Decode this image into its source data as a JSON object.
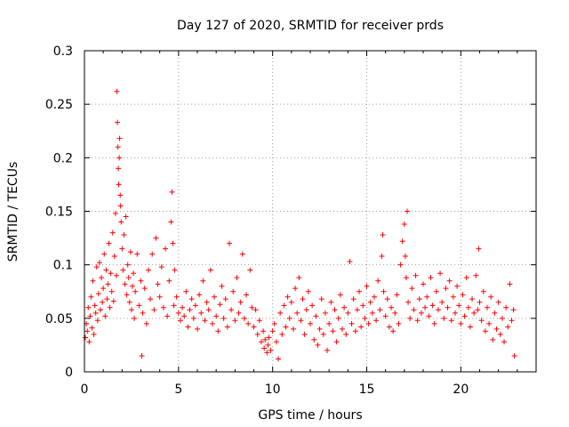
{
  "chart_data": {
    "type": "scatter",
    "title": "Day 127 of 2020, SRMTID for receiver prds",
    "xlabel": "GPS time / hours",
    "ylabel": "SRMTID / TECUs",
    "xlim": [
      0,
      24
    ],
    "ylim": [
      0,
      0.3
    ],
    "xticks": [
      0,
      5,
      10,
      15,
      20
    ],
    "xtick_labels": [
      "0",
      "5",
      "10",
      "15",
      "20"
    ],
    "yticks": [
      0,
      0.05,
      0.1,
      0.15,
      0.2,
      0.25,
      0.3
    ],
    "ytick_labels": [
      "0",
      "0.05",
      "0.1",
      "0.15",
      "0.2",
      "0.25",
      "0.3"
    ],
    "grid": true,
    "marker": "+",
    "series": [
      {
        "name": "SRMTID",
        "color": "#ff0000",
        "points": [
          [
            0.05,
            0.032
          ],
          [
            0.1,
            0.045
          ],
          [
            0.15,
            0.038
          ],
          [
            0.2,
            0.06
          ],
          [
            0.25,
            0.028
          ],
          [
            0.3,
            0.052
          ],
          [
            0.35,
            0.07
          ],
          [
            0.4,
            0.041
          ],
          [
            0.45,
            0.085
          ],
          [
            0.5,
            0.035
          ],
          [
            0.55,
            0.062
          ],
          [
            0.6,
            0.055
          ],
          [
            0.65,
            0.098
          ],
          [
            0.7,
            0.048
          ],
          [
            0.75,
            0.073
          ],
          [
            0.8,
            0.102
          ],
          [
            0.85,
            0.058
          ],
          [
            0.9,
            0.088
          ],
          [
            0.95,
            0.065
          ],
          [
            1.0,
            0.078
          ],
          [
            1.05,
            0.11
          ],
          [
            1.1,
            0.052
          ],
          [
            1.15,
            0.095
          ],
          [
            1.2,
            0.068
          ],
          [
            1.25,
            0.082
          ],
          [
            1.3,
            0.12
          ],
          [
            1.35,
            0.06
          ],
          [
            1.4,
            0.092
          ],
          [
            1.45,
            0.075
          ],
          [
            1.5,
            0.13
          ],
          [
            1.55,
            0.066
          ],
          [
            1.6,
            0.108
          ],
          [
            1.65,
            0.148
          ],
          [
            1.7,
            0.09
          ],
          [
            1.72,
            0.262
          ],
          [
            1.75,
            0.233
          ],
          [
            1.78,
            0.21
          ],
          [
            1.8,
            0.19
          ],
          [
            1.82,
            0.175
          ],
          [
            1.85,
            0.2
          ],
          [
            1.87,
            0.218
          ],
          [
            1.9,
            0.165
          ],
          [
            1.92,
            0.155
          ],
          [
            1.95,
            0.14
          ],
          [
            2.0,
            0.115
          ],
          [
            2.05,
            0.095
          ],
          [
            2.1,
            0.128
          ],
          [
            2.15,
            0.082
          ],
          [
            2.2,
            0.145
          ],
          [
            2.25,
            0.072
          ],
          [
            2.3,
            0.1
          ],
          [
            2.35,
            0.088
          ],
          [
            2.4,
            0.065
          ],
          [
            2.45,
            0.112
          ],
          [
            2.5,
            0.058
          ],
          [
            2.55,
            0.08
          ],
          [
            2.6,
            0.092
          ],
          [
            2.65,
            0.05
          ],
          [
            2.7,
            0.075
          ],
          [
            2.8,
            0.11
          ],
          [
            2.9,
            0.062
          ],
          [
            3.0,
            0.085
          ],
          [
            3.05,
            0.015
          ],
          [
            3.1,
            0.055
          ],
          [
            3.2,
            0.078
          ],
          [
            3.3,
            0.045
          ],
          [
            3.4,
            0.095
          ],
          [
            3.5,
            0.068
          ],
          [
            3.6,
            0.11
          ],
          [
            3.7,
            0.058
          ],
          [
            3.8,
            0.125
          ],
          [
            3.9,
            0.082
          ],
          [
            4.0,
            0.07
          ],
          [
            4.1,
            0.098
          ],
          [
            4.2,
            0.06
          ],
          [
            4.3,
            0.115
          ],
          [
            4.4,
            0.052
          ],
          [
            4.5,
            0.085
          ],
          [
            4.6,
            0.14
          ],
          [
            4.65,
            0.168
          ],
          [
            4.7,
            0.12
          ],
          [
            4.75,
            0.062
          ],
          [
            4.8,
            0.095
          ],
          [
            4.9,
            0.07
          ],
          [
            5.0,
            0.055
          ],
          [
            5.1,
            0.048
          ],
          [
            5.2,
            0.06
          ],
          [
            5.3,
            0.052
          ],
          [
            5.4,
            0.075
          ],
          [
            5.5,
            0.042
          ],
          [
            5.6,
            0.058
          ],
          [
            5.7,
            0.068
          ],
          [
            5.8,
            0.05
          ],
          [
            5.9,
            0.062
          ],
          [
            6.0,
            0.04
          ],
          [
            6.1,
            0.072
          ],
          [
            6.2,
            0.055
          ],
          [
            6.3,
            0.085
          ],
          [
            6.4,
            0.048
          ],
          [
            6.5,
            0.065
          ],
          [
            6.6,
            0.058
          ],
          [
            6.7,
            0.095
          ],
          [
            6.8,
            0.045
          ],
          [
            6.9,
            0.07
          ],
          [
            7.0,
            0.052
          ],
          [
            7.1,
            0.038
          ],
          [
            7.2,
            0.063
          ],
          [
            7.3,
            0.08
          ],
          [
            7.4,
            0.05
          ],
          [
            7.5,
            0.068
          ],
          [
            7.6,
            0.042
          ],
          [
            7.7,
            0.12
          ],
          [
            7.8,
            0.058
          ],
          [
            7.9,
            0.075
          ],
          [
            8.0,
            0.048
          ],
          [
            8.1,
            0.088
          ],
          [
            8.2,
            0.055
          ],
          [
            8.3,
            0.065
          ],
          [
            8.4,
            0.11
          ],
          [
            8.5,
            0.05
          ],
          [
            8.6,
            0.072
          ],
          [
            8.7,
            0.045
          ],
          [
            8.8,
            0.095
          ],
          [
            8.9,
            0.06
          ],
          [
            9.0,
            0.042
          ],
          [
            9.1,
            0.058
          ],
          [
            9.2,
            0.035
          ],
          [
            9.3,
            0.048
          ],
          [
            9.4,
            0.028
          ],
          [
            9.5,
            0.038
          ],
          [
            9.55,
            0.022
          ],
          [
            9.6,
            0.03
          ],
          [
            9.7,
            0.018
          ],
          [
            9.75,
            0.025
          ],
          [
            9.8,
            0.032
          ],
          [
            9.9,
            0.02
          ],
          [
            10.0,
            0.038
          ],
          [
            10.1,
            0.045
          ],
          [
            10.2,
            0.028
          ],
          [
            10.3,
            0.012
          ],
          [
            10.4,
            0.055
          ],
          [
            10.5,
            0.035
          ],
          [
            10.6,
            0.062
          ],
          [
            10.7,
            0.042
          ],
          [
            10.8,
            0.07
          ],
          [
            10.9,
            0.05
          ],
          [
            11.0,
            0.065
          ],
          [
            11.1,
            0.04
          ],
          [
            11.2,
            0.078
          ],
          [
            11.3,
            0.055
          ],
          [
            11.4,
            0.088
          ],
          [
            11.5,
            0.048
          ],
          [
            11.6,
            0.068
          ],
          [
            11.7,
            0.035
          ],
          [
            11.8,
            0.058
          ],
          [
            11.9,
            0.075
          ],
          [
            12.0,
            0.045
          ],
          [
            12.1,
            0.062
          ],
          [
            12.2,
            0.03
          ],
          [
            12.3,
            0.052
          ],
          [
            12.4,
            0.025
          ],
          [
            12.5,
            0.04
          ],
          [
            12.6,
            0.068
          ],
          [
            12.7,
            0.035
          ],
          [
            12.8,
            0.055
          ],
          [
            12.9,
            0.02
          ],
          [
            13.0,
            0.045
          ],
          [
            13.1,
            0.065
          ],
          [
            13.2,
            0.038
          ],
          [
            13.3,
            0.058
          ],
          [
            13.4,
            0.028
          ],
          [
            13.5,
            0.05
          ],
          [
            13.6,
            0.072
          ],
          [
            13.7,
            0.04
          ],
          [
            13.8,
            0.06
          ],
          [
            13.9,
            0.035
          ],
          [
            14.0,
            0.055
          ],
          [
            14.1,
            0.103
          ],
          [
            14.2,
            0.045
          ],
          [
            14.3,
            0.068
          ],
          [
            14.4,
            0.038
          ],
          [
            14.5,
            0.058
          ],
          [
            14.6,
            0.075
          ],
          [
            14.7,
            0.042
          ],
          [
            14.8,
            0.062
          ],
          [
            14.9,
            0.05
          ],
          [
            15.0,
            0.08
          ],
          [
            15.1,
            0.045
          ],
          [
            15.2,
            0.065
          ],
          [
            15.3,
            0.055
          ],
          [
            15.4,
            0.07
          ],
          [
            15.5,
            0.048
          ],
          [
            15.6,
            0.085
          ],
          [
            15.7,
            0.058
          ],
          [
            15.8,
            0.108
          ],
          [
            15.85,
            0.128
          ],
          [
            15.9,
            0.075
          ],
          [
            16.0,
            0.052
          ],
          [
            16.1,
            0.068
          ],
          [
            16.2,
            0.042
          ],
          [
            16.3,
            0.06
          ],
          [
            16.4,
            0.038
          ],
          [
            16.5,
            0.055
          ],
          [
            16.6,
            0.072
          ],
          [
            16.7,
            0.045
          ],
          [
            16.8,
            0.1
          ],
          [
            16.9,
            0.122
          ],
          [
            17.0,
            0.138
          ],
          [
            17.05,
            0.108
          ],
          [
            17.1,
            0.088
          ],
          [
            17.15,
            0.15
          ],
          [
            17.2,
            0.065
          ],
          [
            17.3,
            0.05
          ],
          [
            17.4,
            0.078
          ],
          [
            17.5,
            0.058
          ],
          [
            17.6,
            0.09
          ],
          [
            17.7,
            0.048
          ],
          [
            17.8,
            0.068
          ],
          [
            17.9,
            0.055
          ],
          [
            18.0,
            0.082
          ],
          [
            18.1,
            0.06
          ],
          [
            18.2,
            0.07
          ],
          [
            18.3,
            0.052
          ],
          [
            18.4,
            0.088
          ],
          [
            18.5,
            0.062
          ],
          [
            18.6,
            0.045
          ],
          [
            18.7,
            0.075
          ],
          [
            18.8,
            0.058
          ],
          [
            18.9,
            0.092
          ],
          [
            19.0,
            0.065
          ],
          [
            19.1,
            0.05
          ],
          [
            19.2,
            0.078
          ],
          [
            19.3,
            0.06
          ],
          [
            19.4,
            0.085
          ],
          [
            19.5,
            0.048
          ],
          [
            19.6,
            0.07
          ],
          [
            19.7,
            0.055
          ],
          [
            19.8,
            0.08
          ],
          [
            19.9,
            0.062
          ],
          [
            20.0,
            0.045
          ],
          [
            20.1,
            0.072
          ],
          [
            20.2,
            0.052
          ],
          [
            20.3,
            0.088
          ],
          [
            20.4,
            0.06
          ],
          [
            20.5,
            0.042
          ],
          [
            20.6,
            0.068
          ],
          [
            20.7,
            0.055
          ],
          [
            20.8,
            0.09
          ],
          [
            20.9,
            0.058
          ],
          [
            20.95,
            0.115
          ],
          [
            21.0,
            0.065
          ],
          [
            21.1,
            0.048
          ],
          [
            21.2,
            0.075
          ],
          [
            21.3,
            0.038
          ],
          [
            21.4,
            0.06
          ],
          [
            21.5,
            0.045
          ],
          [
            21.6,
            0.07
          ],
          [
            21.7,
            0.03
          ],
          [
            21.8,
            0.055
          ],
          [
            21.9,
            0.04
          ],
          [
            22.0,
            0.065
          ],
          [
            22.1,
            0.035
          ],
          [
            22.2,
            0.05
          ],
          [
            22.3,
            0.028
          ],
          [
            22.4,
            0.06
          ],
          [
            22.5,
            0.042
          ],
          [
            22.6,
            0.082
          ],
          [
            22.7,
            0.048
          ],
          [
            22.8,
            0.058
          ],
          [
            22.85,
            0.015
          ]
        ]
      }
    ]
  }
}
